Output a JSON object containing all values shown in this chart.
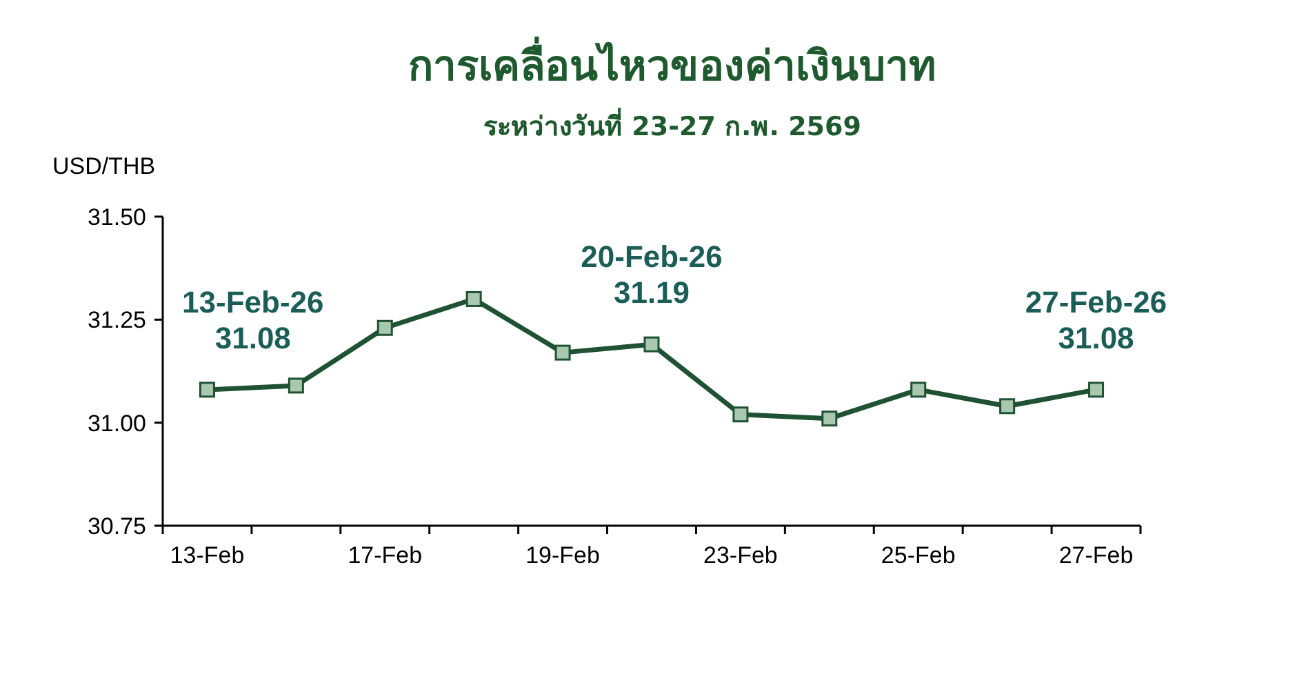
{
  "chart_data": {
    "type": "line",
    "title": "การเคลื่อนไหวของค่าเงินบาท",
    "subtitle": "ระหว่างวันที่ 23-27 ก.พ. 2569",
    "ylabel": "USD/THB",
    "categories": [
      "13-Feb",
      null,
      "17-Feb",
      null,
      "19-Feb",
      null,
      "23-Feb",
      null,
      "25-Feb",
      null,
      "27-Feb"
    ],
    "series": [
      {
        "color": "#1f5232",
        "values": [
          31.08,
          31.09,
          31.23,
          31.3,
          31.17,
          31.19,
          31.02,
          31.01,
          31.08,
          31.04,
          31.08
        ]
      }
    ],
    "marker": "square",
    "line_style": "solid",
    "grid": false,
    "ylim": [
      30.75,
      31.5
    ],
    "yticks": [
      {
        "value": 30.75,
        "label": "30.75"
      },
      {
        "value": 31,
        "label": "31.00"
      },
      {
        "value": 31.25,
        "label": "31.25"
      },
      {
        "value": 31.5,
        "label": "31.50"
      }
    ],
    "annotations": [
      {
        "text": "13-Feb-26\n31.08",
        "x": "13-Feb",
        "y": 31.08
      },
      {
        "text": "20-Feb-26\n31.19",
        "y": 31.19
      },
      {
        "text": "27-Feb-26\n31.08",
        "x": "27-Feb",
        "y": 31.08
      }
    ]
  }
}
